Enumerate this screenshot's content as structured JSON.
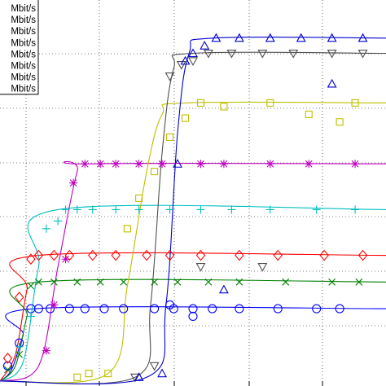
{
  "chart_data": {
    "type": "scatter",
    "title": "",
    "xlabel": "",
    "ylabel": "",
    "xlim": [
      0,
      1
    ],
    "ylim": [
      0,
      1
    ],
    "grid": true,
    "legend_position": "top-left",
    "legend_entries": [
      "Mbit/s",
      "Mbit/s",
      "Mbit/s",
      "Mbit/s",
      "Mbit/s",
      "Mbit/s",
      "Mbit/s",
      "Mbit/s"
    ],
    "series": [
      {
        "color": "#0000ff",
        "marker": "circle",
        "values": [
          [
            0.02,
            0.04
          ],
          [
            0.05,
            0.1
          ],
          [
            0.08,
            0.19
          ],
          [
            0.1,
            0.19
          ],
          [
            0.13,
            0.19
          ],
          [
            0.18,
            0.19
          ],
          [
            0.22,
            0.19
          ],
          [
            0.27,
            0.19
          ],
          [
            0.32,
            0.19
          ],
          [
            0.4,
            0.19
          ],
          [
            0.45,
            0.19
          ],
          [
            0.5,
            0.19
          ],
          [
            0.55,
            0.19
          ],
          [
            0.62,
            0.19
          ],
          [
            0.72,
            0.19
          ],
          [
            0.82,
            0.19
          ],
          [
            0.88,
            0.19
          ],
          [
            0.44,
            0.2
          ],
          [
            0.5,
            0.17
          ]
        ],
        "fit": [
          [
            0.0,
            0.0
          ],
          [
            0.03,
            0.03
          ],
          [
            0.06,
            0.12
          ],
          [
            0.09,
            0.19
          ],
          [
            1.0,
            0.19
          ]
        ]
      },
      {
        "color": "#008000",
        "marker": "x",
        "values": [
          [
            0.02,
            0.03
          ],
          [
            0.05,
            0.07
          ],
          [
            0.08,
            0.25
          ],
          [
            0.1,
            0.26
          ],
          [
            0.14,
            0.26
          ],
          [
            0.2,
            0.26
          ],
          [
            0.26,
            0.26
          ],
          [
            0.32,
            0.26
          ],
          [
            0.4,
            0.26
          ],
          [
            0.46,
            0.26
          ],
          [
            0.54,
            0.26
          ],
          [
            0.62,
            0.26
          ],
          [
            0.74,
            0.26
          ],
          [
            0.86,
            0.26
          ],
          [
            0.93,
            0.26
          ]
        ],
        "fit": [
          [
            0.0,
            0.0
          ],
          [
            0.04,
            0.04
          ],
          [
            0.07,
            0.17
          ],
          [
            0.1,
            0.26
          ],
          [
            1.0,
            0.26
          ]
        ]
      },
      {
        "color": "#ff0000",
        "marker": "diamond",
        "values": [
          [
            0.02,
            0.06
          ],
          [
            0.05,
            0.22
          ],
          [
            0.08,
            0.32
          ],
          [
            0.1,
            0.33
          ],
          [
            0.14,
            0.33
          ],
          [
            0.18,
            0.33
          ],
          [
            0.24,
            0.33
          ],
          [
            0.3,
            0.33
          ],
          [
            0.38,
            0.33
          ],
          [
            0.44,
            0.33
          ],
          [
            0.52,
            0.33
          ],
          [
            0.62,
            0.33
          ],
          [
            0.72,
            0.33
          ],
          [
            0.84,
            0.33
          ],
          [
            0.94,
            0.33
          ]
        ],
        "fit": [
          [
            0.0,
            0.0
          ],
          [
            0.04,
            0.07
          ],
          [
            0.07,
            0.24
          ],
          [
            0.1,
            0.33
          ],
          [
            1.0,
            0.33
          ]
        ]
      },
      {
        "color": "#00bfbf",
        "marker": "plus",
        "values": [
          [
            0.05,
            0.09
          ],
          [
            0.08,
            0.17
          ],
          [
            0.12,
            0.4
          ],
          [
            0.15,
            0.42
          ],
          [
            0.17,
            0.45
          ],
          [
            0.2,
            0.45
          ],
          [
            0.24,
            0.45
          ],
          [
            0.3,
            0.45
          ],
          [
            0.36,
            0.45
          ],
          [
            0.44,
            0.45
          ],
          [
            0.52,
            0.45
          ],
          [
            0.6,
            0.45
          ],
          [
            0.7,
            0.45
          ],
          [
            0.82,
            0.45
          ],
          [
            0.92,
            0.45
          ]
        ],
        "fit": [
          [
            0.0,
            0.0
          ],
          [
            0.06,
            0.05
          ],
          [
            0.1,
            0.3
          ],
          [
            0.15,
            0.45
          ],
          [
            1.0,
            0.45
          ]
        ]
      },
      {
        "color": "#bf00bf",
        "marker": "asterisk",
        "values": [
          [
            0.12,
            0.08
          ],
          [
            0.14,
            0.2
          ],
          [
            0.17,
            0.32
          ],
          [
            0.19,
            0.52
          ],
          [
            0.22,
            0.57
          ],
          [
            0.26,
            0.57
          ],
          [
            0.3,
            0.57
          ],
          [
            0.36,
            0.57
          ],
          [
            0.42,
            0.57
          ],
          [
            0.52,
            0.57
          ],
          [
            0.58,
            0.57
          ],
          [
            0.7,
            0.57
          ],
          [
            0.8,
            0.57
          ],
          [
            0.92,
            0.57
          ]
        ],
        "fit": [
          [
            0.0,
            0.0
          ],
          [
            0.1,
            0.04
          ],
          [
            0.15,
            0.3
          ],
          [
            0.2,
            0.55
          ],
          [
            0.23,
            0.57
          ],
          [
            1.0,
            0.57
          ]
        ]
      },
      {
        "color": "#bfbf00",
        "marker": "square",
        "values": [
          [
            0.2,
            0.01
          ],
          [
            0.23,
            0.02
          ],
          [
            0.28,
            0.02
          ],
          [
            0.33,
            0.4
          ],
          [
            0.36,
            0.48
          ],
          [
            0.4,
            0.55
          ],
          [
            0.44,
            0.64
          ],
          [
            0.48,
            0.69
          ],
          [
            0.52,
            0.73
          ],
          [
            0.58,
            0.72
          ],
          [
            0.7,
            0.73
          ],
          [
            0.8,
            0.7
          ],
          [
            0.88,
            0.68
          ],
          [
            0.92,
            0.73
          ]
        ],
        "fit": [
          [
            0.0,
            0.0
          ],
          [
            0.28,
            0.02
          ],
          [
            0.33,
            0.25
          ],
          [
            0.38,
            0.55
          ],
          [
            0.42,
            0.7
          ],
          [
            0.48,
            0.73
          ],
          [
            1.0,
            0.73
          ]
        ]
      },
      {
        "color": "#505050",
        "marker": "triangle-down",
        "values": [
          [
            0.35,
            0.01
          ],
          [
            0.4,
            0.04
          ],
          [
            0.44,
            0.8
          ],
          [
            0.47,
            0.83
          ],
          [
            0.5,
            0.84
          ],
          [
            0.54,
            0.86
          ],
          [
            0.6,
            0.86
          ],
          [
            0.68,
            0.86
          ],
          [
            0.76,
            0.86
          ],
          [
            0.86,
            0.86
          ],
          [
            0.94,
            0.86
          ],
          [
            0.52,
            0.3
          ],
          [
            0.68,
            0.3
          ]
        ],
        "fit": [
          [
            0.0,
            0.0
          ],
          [
            0.35,
            0.01
          ],
          [
            0.39,
            0.2
          ],
          [
            0.42,
            0.6
          ],
          [
            0.45,
            0.82
          ],
          [
            0.5,
            0.86
          ],
          [
            1.0,
            0.86
          ]
        ]
      },
      {
        "color": "#0000cc",
        "marker": "triangle-up",
        "values": [
          [
            0.36,
            0.01
          ],
          [
            0.42,
            0.02
          ],
          [
            0.46,
            0.57
          ],
          [
            0.48,
            0.84
          ],
          [
            0.5,
            0.86
          ],
          [
            0.53,
            0.88
          ],
          [
            0.56,
            0.9
          ],
          [
            0.62,
            0.9
          ],
          [
            0.7,
            0.9
          ],
          [
            0.78,
            0.9
          ],
          [
            0.86,
            0.9
          ],
          [
            0.94,
            0.9
          ],
          [
            0.58,
            0.24
          ],
          [
            0.86,
            0.78
          ]
        ],
        "fit": [
          [
            0.0,
            0.0
          ],
          [
            0.38,
            0.01
          ],
          [
            0.43,
            0.2
          ],
          [
            0.46,
            0.65
          ],
          [
            0.49,
            0.86
          ],
          [
            0.55,
            0.9
          ],
          [
            1.0,
            0.9
          ]
        ]
      }
    ]
  }
}
